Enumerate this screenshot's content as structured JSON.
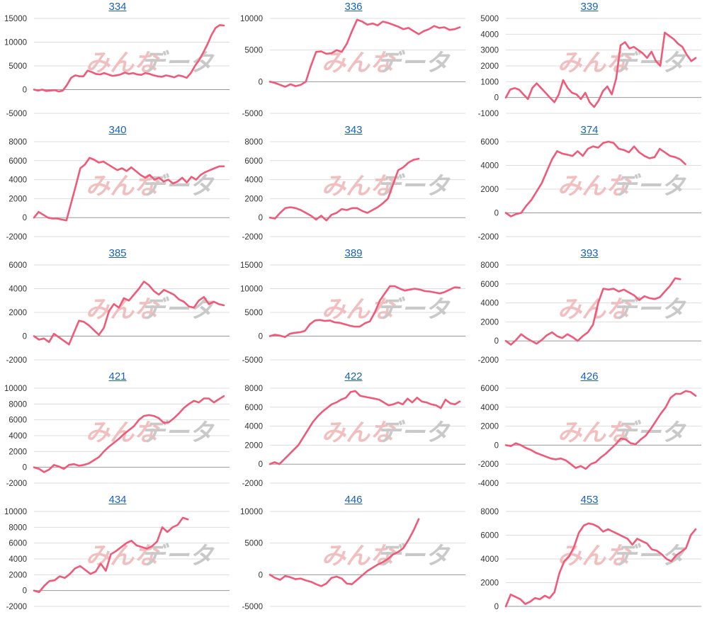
{
  "colors": {
    "line": "#f05a78",
    "title": "#1a62b8",
    "grid": "#dddddd",
    "axis": "#999999",
    "wm_pink": "#f0b9b9",
    "wm_gray": "#c4c4c4"
  },
  "chart_data": [
    {
      "type": "line",
      "title": "334",
      "ylim": [
        -5000,
        15000
      ],
      "yticks": [
        -5000,
        0,
        5000,
        10000,
        15000
      ],
      "values": [
        0,
        -200,
        0,
        -300,
        -200,
        -100,
        -400,
        -200,
        1000,
        2500,
        3000,
        2800,
        2800,
        4000,
        3700,
        3300,
        3200,
        3500,
        3200,
        2900,
        3000,
        3200,
        3600,
        3300,
        3500,
        3200,
        3100,
        3500,
        3300,
        3000,
        2800,
        2700,
        3000,
        2800,
        2600,
        3000,
        2800,
        2500,
        3500,
        5000,
        6200,
        7800,
        9500,
        11500,
        13000,
        13600,
        13500
      ]
    },
    {
      "type": "line",
      "title": "336",
      "ylim": [
        -5000,
        10000
      ],
      "yticks": [
        -5000,
        0,
        5000,
        10000
      ],
      "values": [
        0,
        -200,
        -500,
        -800,
        -400,
        -700,
        -500,
        0,
        2500,
        4700,
        4800,
        4400,
        4500,
        5000,
        4700,
        6000,
        8000,
        9800,
        9500,
        9000,
        9200,
        8900,
        9500,
        9300,
        9000,
        8700,
        8300,
        8500,
        8000,
        7500,
        8000,
        8300,
        8800,
        8500,
        8600,
        8200,
        8300,
        8600
      ]
    },
    {
      "type": "line",
      "title": "339",
      "ylim": [
        -1000,
        5000
      ],
      "yticks": [
        -1000,
        0,
        1000,
        2000,
        3000,
        4000,
        5000
      ],
      "values": [
        0,
        500,
        600,
        500,
        200,
        -100,
        600,
        900,
        600,
        300,
        0,
        -300,
        200,
        1100,
        600,
        300,
        200,
        -100,
        300,
        -300,
        -600,
        -200,
        400,
        700,
        200,
        1200,
        3300,
        3500,
        3100,
        3200,
        3000,
        2800,
        2500,
        2900,
        2300,
        2000,
        4100,
        3900,
        3700,
        3400,
        3200,
        2700,
        2300,
        2500
      ]
    },
    {
      "type": "line",
      "title": "340",
      "ylim": [
        -2000,
        8000
      ],
      "yticks": [
        -2000,
        0,
        2000,
        4000,
        6000,
        8000
      ],
      "values": [
        0,
        600,
        300,
        0,
        -100,
        -100,
        -200,
        -300,
        1500,
        3300,
        5200,
        5600,
        6300,
        6100,
        5800,
        5900,
        5600,
        5300,
        5000,
        5200,
        4900,
        5300,
        4900,
        4500,
        4200,
        4500,
        4000,
        4200,
        3800,
        4000,
        3600,
        3800,
        4200,
        3700,
        4300,
        4000,
        4500,
        4800,
        5000,
        5200,
        5400,
        5400
      ]
    },
    {
      "type": "line",
      "title": "343",
      "ylim": [
        -2000,
        8000
      ],
      "yticks": [
        -2000,
        0,
        2000,
        4000,
        6000,
        8000
      ],
      "values": [
        0,
        -100,
        500,
        1000,
        1100,
        1000,
        800,
        500,
        200,
        -200,
        200,
        -300,
        300,
        500,
        900,
        800,
        1000,
        1000,
        700,
        500,
        800,
        1100,
        1500,
        2000,
        3500,
        5000,
        5300,
        5800,
        6100,
        6200
      ]
    },
    {
      "type": "line",
      "title": "374",
      "ylim": [
        -2000,
        6000
      ],
      "yticks": [
        -2000,
        0,
        2000,
        4000,
        6000
      ],
      "values": [
        0,
        -300,
        -100,
        0,
        600,
        1100,
        1800,
        2500,
        3500,
        4500,
        5200,
        5000,
        4900,
        4800,
        5200,
        4800,
        5400,
        5600,
        5500,
        5900,
        6000,
        5900,
        5400,
        5300,
        5100,
        5600,
        5100,
        4800,
        4600,
        4700,
        5400,
        5100,
        4800,
        4700,
        4500,
        4100
      ]
    },
    {
      "type": "line",
      "title": "385",
      "ylim": [
        -2000,
        6000
      ],
      "yticks": [
        -2000,
        0,
        2000,
        4000,
        6000
      ],
      "values": [
        0,
        -300,
        -200,
        -500,
        200,
        -100,
        -400,
        -700,
        300,
        1300,
        1200,
        900,
        500,
        100,
        700,
        2100,
        2700,
        2400,
        3200,
        3000,
        3500,
        4000,
        4600,
        4300,
        3800,
        3500,
        3900,
        3700,
        3500,
        3100,
        2900,
        2500,
        2400,
        3000,
        3300,
        2700,
        2900,
        2700,
        2600
      ]
    },
    {
      "type": "line",
      "title": "389",
      "ylim": [
        -5000,
        15000
      ],
      "yticks": [
        -5000,
        0,
        5000,
        10000,
        15000
      ],
      "values": [
        0,
        300,
        100,
        -200,
        500,
        700,
        800,
        1100,
        2500,
        3300,
        3400,
        3200,
        3300,
        2900,
        2800,
        2500,
        2200,
        2000,
        2000,
        2700,
        3100,
        5000,
        7500,
        9000,
        10500,
        10500,
        10000,
        9600,
        9800,
        10000,
        9800,
        9500,
        9400,
        9200,
        9000,
        9300,
        9800,
        10300,
        10200
      ]
    },
    {
      "type": "line",
      "title": "393",
      "ylim": [
        -2000,
        8000
      ],
      "yticks": [
        -2000,
        0,
        2000,
        4000,
        6000,
        8000
      ],
      "values": [
        0,
        -400,
        100,
        700,
        300,
        0,
        -300,
        100,
        600,
        900,
        500,
        300,
        700,
        400,
        0,
        500,
        900,
        1700,
        4000,
        5500,
        5400,
        5500,
        5200,
        5400,
        5100,
        4800,
        4300,
        4700,
        4500,
        4400,
        4600,
        5200,
        5800,
        6600,
        6500
      ]
    },
    {
      "type": "line",
      "title": "421",
      "ylim": [
        -2000,
        10000
      ],
      "yticks": [
        -2000,
        0,
        2000,
        4000,
        6000,
        8000,
        10000
      ],
      "values": [
        0,
        -200,
        -600,
        -300,
        300,
        100,
        -200,
        300,
        400,
        200,
        300,
        500,
        900,
        1300,
        2000,
        2600,
        3100,
        3600,
        4200,
        4700,
        5200,
        6000,
        6500,
        6600,
        6500,
        6200,
        5600,
        5700,
        6200,
        6800,
        7500,
        8000,
        8400,
        8200,
        8700,
        8700,
        8200,
        8600,
        9000
      ]
    },
    {
      "type": "line",
      "title": "422",
      "ylim": [
        -2000,
        8000
      ],
      "yticks": [
        -2000,
        0,
        2000,
        4000,
        6000,
        8000
      ],
      "values": [
        0,
        200,
        0,
        500,
        1000,
        1500,
        2000,
        2800,
        3600,
        4400,
        5000,
        5500,
        5900,
        6300,
        6500,
        6800,
        7000,
        7600,
        7700,
        7200,
        7100,
        7000,
        6900,
        6800,
        6500,
        6200,
        6300,
        6500,
        6300,
        6900,
        6500,
        7000,
        6600,
        6500,
        6300,
        6200,
        5900,
        6800,
        6400,
        6300,
        6600
      ]
    },
    {
      "type": "line",
      "title": "426",
      "ylim": [
        -4000,
        6000
      ],
      "yticks": [
        -4000,
        -2000,
        0,
        2000,
        4000,
        6000
      ],
      "values": [
        0,
        -100,
        200,
        0,
        -300,
        -500,
        -800,
        -1000,
        -1200,
        -1400,
        -1500,
        -1400,
        -1600,
        -2000,
        -2400,
        -2200,
        -2500,
        -2000,
        -1800,
        -1300,
        -900,
        -400,
        100,
        700,
        600,
        200,
        100,
        600,
        1000,
        1700,
        2500,
        3300,
        4000,
        5000,
        5400,
        5400,
        5700,
        5600,
        5200
      ]
    },
    {
      "type": "line",
      "title": "434",
      "ylim": [
        -2000,
        10000
      ],
      "yticks": [
        -2000,
        0,
        2000,
        4000,
        6000,
        8000,
        10000
      ],
      "values": [
        0,
        -200,
        600,
        1200,
        1300,
        1800,
        1600,
        2100,
        2800,
        3100,
        2600,
        2100,
        2400,
        3400,
        2500,
        4600,
        5000,
        5500,
        6000,
        6300,
        5700,
        5500,
        5300,
        5600,
        6200,
        8000,
        7400,
        8000,
        8300,
        9200,
        9000
      ]
    },
    {
      "type": "line",
      "title": "446",
      "ylim": [
        -5000,
        10000
      ],
      "yticks": [
        -5000,
        0,
        5000,
        10000
      ],
      "values": [
        0,
        -500,
        -800,
        -200,
        -400,
        -700,
        -600,
        -900,
        -1100,
        -1500,
        -1800,
        -1400,
        -500,
        -300,
        -600,
        -1400,
        -1500,
        -800,
        -100,
        600,
        1100,
        1600,
        2000,
        2500,
        3200,
        3600,
        4200,
        5500,
        7000,
        8800
      ]
    },
    {
      "type": "line",
      "title": "453",
      "ylim": [
        0,
        8000
      ],
      "yticks": [
        0,
        2000,
        4000,
        6000,
        8000
      ],
      "values": [
        0,
        1000,
        800,
        600,
        200,
        400,
        700,
        600,
        900,
        700,
        1200,
        2800,
        3800,
        4200,
        5000,
        6200,
        6800,
        7000,
        6900,
        6700,
        6300,
        6500,
        6300,
        6100,
        5900,
        5700,
        5200,
        5700,
        5500,
        5300,
        4800,
        4700,
        4400,
        4000,
        3800,
        4300,
        4600,
        4900,
        6000,
        6500
      ]
    }
  ]
}
